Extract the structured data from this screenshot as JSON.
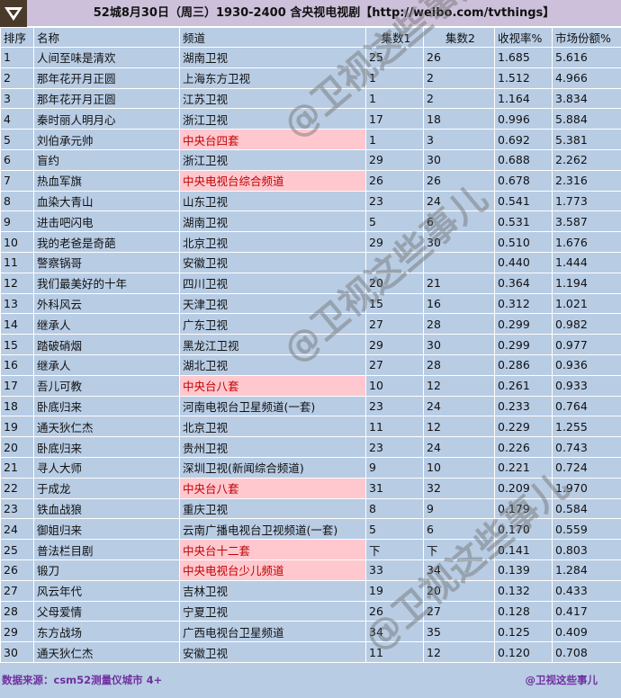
{
  "title": "52城8月30日（周三）1930-2400 含央视电视剧【http://weibo.com/tvthings】",
  "colors": {
    "background": "#b8cce4",
    "title_bg": "#ccc0da",
    "highlight_bg": "#ffc7ce",
    "highlight_text": "#c00000",
    "footer_text": "#7030a0"
  },
  "columns": [
    "排序",
    "名称",
    "频道",
    "集数1",
    "集数2",
    "收视率%",
    "市场份额%"
  ],
  "rows": [
    [
      "1",
      "人间至味是清欢",
      "湖南卫视",
      "25",
      "26",
      "1.685",
      "5.616",
      false
    ],
    [
      "2",
      "那年花开月正圆",
      "上海东方卫视",
      "1",
      "2",
      "1.512",
      "4.966",
      false
    ],
    [
      "3",
      "那年花开月正圆",
      "江苏卫视",
      "1",
      "2",
      "1.164",
      "3.834",
      false
    ],
    [
      "4",
      "秦时丽人明月心",
      "浙江卫视",
      "17",
      "18",
      "0.996",
      "5.884",
      false
    ],
    [
      "5",
      "刘伯承元帅",
      "中央台四套",
      "1",
      "3",
      "0.692",
      "5.381",
      true
    ],
    [
      "6",
      "盲约",
      "浙江卫视",
      "29",
      "30",
      "0.688",
      "2.262",
      false
    ],
    [
      "7",
      "热血军旗",
      "中央电视台综合频道",
      "26",
      "26",
      "0.678",
      "2.316",
      true
    ],
    [
      "8",
      "血染大青山",
      "山东卫视",
      "23",
      "24",
      "0.541",
      "1.773",
      false
    ],
    [
      "9",
      "进击吧闪电",
      "湖南卫视",
      "5",
      "6",
      "0.531",
      "3.587",
      false
    ],
    [
      "10",
      "我的老爸是奇葩",
      "北京卫视",
      "29",
      "30",
      "0.510",
      "1.676",
      false
    ],
    [
      "11",
      "警察锅哥",
      "安徽卫视",
      "",
      "",
      "0.440",
      "1.444",
      false
    ],
    [
      "12",
      "我们最美好的十年",
      "四川卫视",
      "20",
      "21",
      "0.364",
      "1.194",
      false
    ],
    [
      "13",
      "外科风云",
      "天津卫视",
      "15",
      "16",
      "0.312",
      "1.021",
      false
    ],
    [
      "14",
      "继承人",
      "广东卫视",
      "27",
      "28",
      "0.299",
      "0.982",
      false
    ],
    [
      "15",
      "踏破硝烟",
      "黑龙江卫视",
      "29",
      "30",
      "0.299",
      "0.977",
      false
    ],
    [
      "16",
      "继承人",
      "湖北卫视",
      "27",
      "28",
      "0.286",
      "0.936",
      false
    ],
    [
      "17",
      "吾儿可教",
      "中央台八套",
      "10",
      "12",
      "0.261",
      "0.933",
      true
    ],
    [
      "18",
      "卧底归来",
      "河南电视台卫星频道(一套)",
      "23",
      "24",
      "0.233",
      "0.764",
      false
    ],
    [
      "19",
      "通天狄仁杰",
      "北京卫视",
      "11",
      "12",
      "0.229",
      "1.255",
      false
    ],
    [
      "20",
      "卧底归来",
      "贵州卫视",
      "23",
      "24",
      "0.226",
      "0.743",
      false
    ],
    [
      "21",
      "寻人大师",
      "深圳卫视(新闻综合频道)",
      "9",
      "10",
      "0.221",
      "0.724",
      false
    ],
    [
      "22",
      "于成龙",
      "中央台八套",
      "31",
      "32",
      "0.209",
      "1.970",
      true
    ],
    [
      "23",
      "铁血战狼",
      "重庆卫视",
      "8",
      "9",
      "0.179",
      "0.584",
      false
    ],
    [
      "24",
      "御姐归来",
      "云南广播电视台卫视频道(一套)",
      "5",
      "6",
      "0.170",
      "0.559",
      false
    ],
    [
      "25",
      "普法栏目剧",
      "中央台十二套",
      "下",
      "下",
      "0.141",
      "0.803",
      true
    ],
    [
      "26",
      "锻刀",
      "中央电视台少儿频道",
      "33",
      "34",
      "0.139",
      "1.284",
      true
    ],
    [
      "27",
      "风云年代",
      "吉林卫视",
      "19",
      "20",
      "0.132",
      "0.433",
      false
    ],
    [
      "28",
      "父母爱情",
      "宁夏卫视",
      "26",
      "27",
      "0.128",
      "0.417",
      false
    ],
    [
      "29",
      "东方战场",
      "广西电视台卫星频道",
      "34",
      "35",
      "0.125",
      "0.409",
      false
    ],
    [
      "30",
      "通天狄仁杰",
      "安徽卫视",
      "11",
      "12",
      "0.120",
      "0.708",
      false
    ]
  ],
  "footer": {
    "source": "数据来源：csm52测量仪城市 4+",
    "credit": "@卫视这些事儿"
  },
  "watermark": "@卫视这些事儿",
  "logo_icon": "tv-logo-icon"
}
